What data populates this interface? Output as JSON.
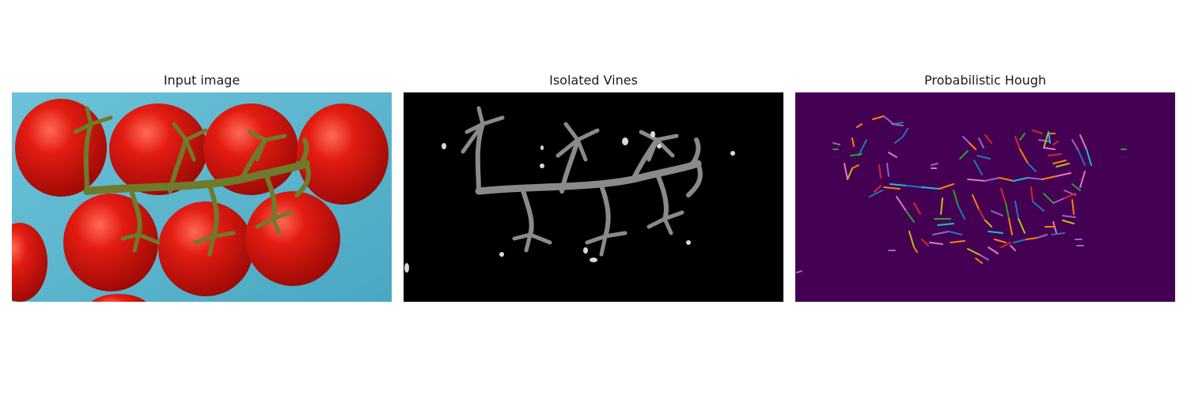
{
  "figure": {
    "panels": [
      {
        "title": "Input image"
      },
      {
        "title": "Isolated Vines"
      },
      {
        "title": "Probabilistic Hough"
      }
    ]
  },
  "colors": {
    "tray_blue": "#5fb8cf",
    "tomato_red": "#d4140f",
    "vine_green": "#6f7a2a",
    "mask_background": "#000000",
    "mask_vine_gray": "#8a8a8a",
    "hough_background": "#440154",
    "hough_line_palette": [
      "#1f77b4",
      "#ff7f0e",
      "#2ca02c",
      "#d62728",
      "#9467bd",
      "#8c564b",
      "#e377c2",
      "#7f7f7f",
      "#bcbd22",
      "#17becf"
    ]
  }
}
